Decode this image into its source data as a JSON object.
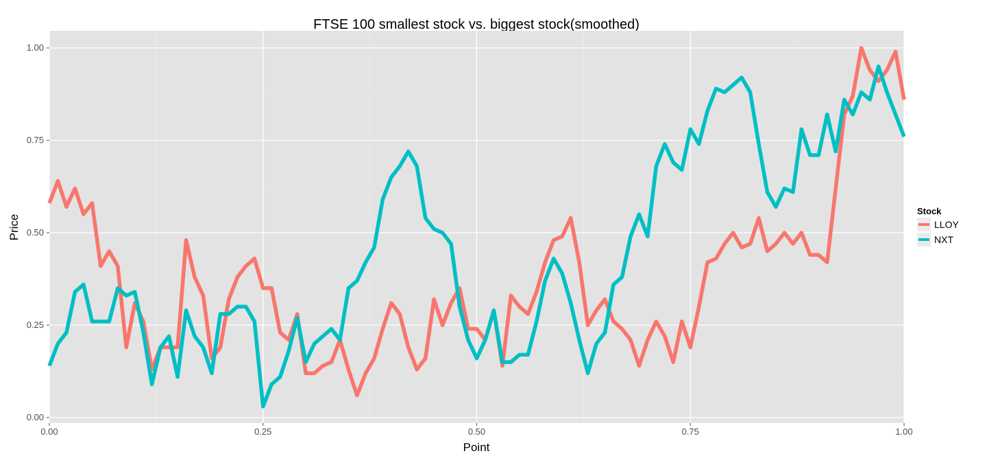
{
  "chart_data": {
    "type": "line",
    "title": "FTSE 100 smallest stock vs. biggest stock(smoothed)",
    "xlabel": "Point",
    "ylabel": "Price",
    "xlim": [
      0,
      1
    ],
    "ylim": [
      0,
      1
    ],
    "x_ticks": [
      "0.00",
      "0.25",
      "0.50",
      "0.75",
      "1.00"
    ],
    "y_ticks": [
      "0.00",
      "0.25",
      "0.50",
      "0.75",
      "1.00"
    ],
    "grid": true,
    "legend": {
      "title": "Stock",
      "placement": "right"
    },
    "series": [
      {
        "name": "LLOY",
        "color": "#F8766D",
        "values": [
          0.58,
          0.64,
          0.57,
          0.62,
          0.55,
          0.58,
          0.41,
          0.45,
          0.41,
          0.19,
          0.31,
          0.26,
          0.13,
          0.19,
          0.19,
          0.19,
          0.48,
          0.38,
          0.33,
          0.16,
          0.19,
          0.32,
          0.38,
          0.41,
          0.43,
          0.35,
          0.35,
          0.23,
          0.21,
          0.28,
          0.12,
          0.12,
          0.14,
          0.15,
          0.21,
          0.13,
          0.06,
          0.12,
          0.16,
          0.24,
          0.31,
          0.28,
          0.19,
          0.13,
          0.16,
          0.32,
          0.25,
          0.31,
          0.35,
          0.24,
          0.24,
          0.21,
          0.29,
          0.14,
          0.33,
          0.3,
          0.28,
          0.34,
          0.42,
          0.48,
          0.49,
          0.54,
          0.42,
          0.25,
          0.29,
          0.32,
          0.26,
          0.24,
          0.21,
          0.14,
          0.21,
          0.26,
          0.22,
          0.15,
          0.26,
          0.19,
          0.3,
          0.42,
          0.43,
          0.47,
          0.5,
          0.46,
          0.47,
          0.54,
          0.45,
          0.47,
          0.5,
          0.47,
          0.5,
          0.44,
          0.44,
          0.42,
          0.62,
          0.82,
          0.87,
          1.0,
          0.94,
          0.91,
          0.94,
          0.99,
          0.86
        ]
      },
      {
        "name": "NXT",
        "color": "#00BFC4",
        "values": [
          0.14,
          0.2,
          0.23,
          0.34,
          0.36,
          0.26,
          0.26,
          0.26,
          0.35,
          0.33,
          0.34,
          0.23,
          0.09,
          0.19,
          0.22,
          0.11,
          0.29,
          0.22,
          0.19,
          0.12,
          0.28,
          0.28,
          0.3,
          0.3,
          0.26,
          0.03,
          0.09,
          0.11,
          0.18,
          0.27,
          0.15,
          0.2,
          0.22,
          0.24,
          0.21,
          0.35,
          0.37,
          0.42,
          0.46,
          0.59,
          0.65,
          0.68,
          0.72,
          0.68,
          0.54,
          0.51,
          0.5,
          0.47,
          0.3,
          0.21,
          0.16,
          0.21,
          0.29,
          0.15,
          0.15,
          0.17,
          0.17,
          0.26,
          0.37,
          0.43,
          0.39,
          0.31,
          0.21,
          0.12,
          0.2,
          0.23,
          0.36,
          0.38,
          0.49,
          0.55,
          0.49,
          0.68,
          0.74,
          0.69,
          0.67,
          0.78,
          0.74,
          0.83,
          0.89,
          0.88,
          0.9,
          0.92,
          0.88,
          0.74,
          0.61,
          0.57,
          0.62,
          0.61,
          0.78,
          0.71,
          0.71,
          0.82,
          0.72,
          0.86,
          0.82,
          0.88,
          0.86,
          0.95,
          0.88,
          0.82,
          0.76
        ]
      }
    ]
  }
}
